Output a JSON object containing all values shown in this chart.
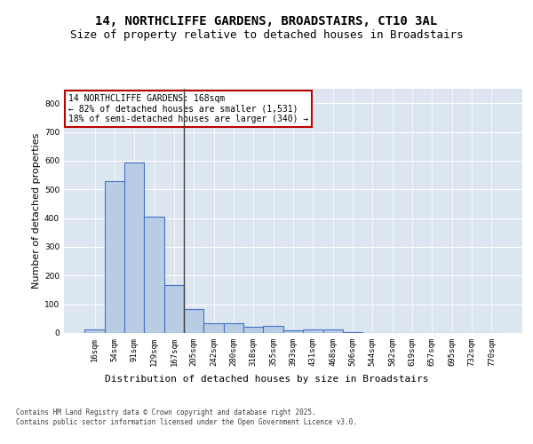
{
  "title1": "14, NORTHCLIFFE GARDENS, BROADSTAIRS, CT10 3AL",
  "title2": "Size of property relative to detached houses in Broadstairs",
  "xlabel": "Distribution of detached houses by size in Broadstairs",
  "ylabel": "Number of detached properties",
  "categories": [
    "16sqm",
    "54sqm",
    "91sqm",
    "129sqm",
    "167sqm",
    "205sqm",
    "242sqm",
    "280sqm",
    "318sqm",
    "355sqm",
    "393sqm",
    "431sqm",
    "468sqm",
    "506sqm",
    "544sqm",
    "582sqm",
    "619sqm",
    "657sqm",
    "695sqm",
    "732sqm",
    "770sqm"
  ],
  "values": [
    13,
    528,
    595,
    405,
    168,
    85,
    35,
    35,
    23,
    24,
    8,
    12,
    12,
    4,
    0,
    0,
    0,
    0,
    0,
    0,
    0
  ],
  "bar_color": "#b8cce4",
  "bar_edge_color": "#4472c4",
  "vline_color": "#404040",
  "annotation_text": "14 NORTHCLIFFE GARDENS: 168sqm\n← 82% of detached houses are smaller (1,531)\n18% of semi-detached houses are larger (340) →",
  "annotation_box_color": "#ffffff",
  "annotation_box_edge": "#c00000",
  "ylim": [
    0,
    850
  ],
  "yticks": [
    0,
    100,
    200,
    300,
    400,
    500,
    600,
    700,
    800
  ],
  "footer": "Contains HM Land Registry data © Crown copyright and database right 2025.\nContains public sector information licensed under the Open Government Licence v3.0.",
  "fig_bg_color": "#ffffff",
  "plot_bg_color": "#dce6f1",
  "title_fontsize": 10,
  "subtitle_fontsize": 9,
  "ylabel_fontsize": 8,
  "xlabel_fontsize": 8,
  "tick_fontsize": 6.5,
  "annotation_fontsize": 7,
  "footer_fontsize": 5.5
}
